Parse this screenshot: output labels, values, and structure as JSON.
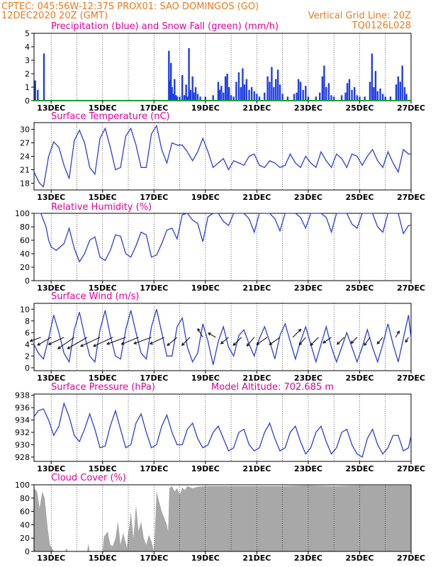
{
  "header": {
    "line1_left": "CPTEC:   045:56W-12:37S   PROX01: SAO DOMINGOS (GO)",
    "line2_left": "12DEC2020 20Z (GMT)",
    "line2_right": "Vertical Grid Line: 20Z",
    "line3_right": "TQ0126L028"
  },
  "colors": {
    "header": "#e87a1f",
    "panel_title": "#e0009a",
    "precip": "#1f3de6",
    "snow": "#1fa12f",
    "line": "#2a3fd6",
    "cloud": "#a8a8a8",
    "grid": "#000000"
  },
  "time_axis": {
    "start": "12DEC2020 12Z",
    "end": "27DEC2020 00Z",
    "label_days": [
      "13DEC",
      "15DEC",
      "17DEC",
      "19DEC",
      "21DEC",
      "23DEC",
      "25DEC",
      "27DEC"
    ]
  },
  "chart_data": [
    {
      "type": "bar",
      "title": "Precipitation (blue) and Snow Fall (green) (mm/h)",
      "ylim": [
        0,
        5
      ],
      "yticks": [
        0,
        1,
        2,
        3,
        4,
        5
      ],
      "series": [
        {
          "name": "Precipitation",
          "x_days": [
            12.38,
            12.48,
            12.72,
            14.0,
            16.0,
            17.58,
            17.62,
            17.66,
            17.7,
            17.74,
            17.8,
            17.86,
            17.9,
            18.0,
            18.1,
            18.18,
            18.25,
            18.3,
            18.36,
            18.42,
            18.5,
            18.55,
            18.62,
            18.7,
            18.8,
            19.0,
            19.3,
            19.5,
            19.55,
            19.62,
            19.7,
            19.78,
            19.85,
            19.92,
            20.0,
            20.1,
            20.2,
            20.3,
            20.38,
            20.45,
            20.52,
            20.6,
            20.7,
            20.8,
            20.9,
            21.0,
            21.1,
            21.3,
            21.42,
            21.5,
            21.58,
            21.66,
            21.74,
            21.82,
            21.9,
            22.0,
            22.2,
            22.45,
            22.55,
            22.62,
            22.7,
            22.8,
            22.9,
            23.0,
            23.3,
            23.45,
            23.55,
            23.62,
            23.7,
            23.8,
            23.9,
            24.0,
            24.3,
            24.45,
            24.52,
            24.6,
            24.7,
            24.8,
            24.9,
            25.0,
            25.2,
            25.4,
            25.48,
            25.55,
            25.62,
            25.7,
            25.8,
            25.9,
            26.0,
            26.2,
            26.42,
            26.5,
            26.58,
            26.66,
            26.75,
            26.82
          ],
          "values": [
            1.5,
            0.8,
            3.5,
            0.05,
            0.05,
            3.7,
            1.5,
            2.8,
            1.0,
            0.5,
            1.6,
            0.4,
            0.3,
            0.3,
            1.9,
            0.4,
            1.2,
            0.3,
            3.9,
            0.8,
            1.8,
            0.6,
            1.0,
            0.5,
            0.3,
            0.3,
            0.4,
            1.4,
            0.8,
            1.1,
            0.6,
            1.8,
            2.0,
            1.0,
            0.4,
            0.3,
            1.4,
            2.1,
            1.0,
            2.4,
            1.2,
            1.6,
            0.8,
            1.0,
            0.7,
            0.5,
            0.3,
            0.6,
            1.8,
            1.4,
            2.5,
            1.0,
            1.6,
            2.3,
            1.2,
            0.5,
            0.3,
            0.5,
            0.6,
            1.6,
            1.4,
            0.8,
            1.1,
            0.3,
            0.3,
            0.6,
            1.8,
            2.6,
            1.0,
            1.3,
            0.4,
            0.3,
            0.4,
            0.6,
            1.3,
            1.6,
            0.8,
            1.0,
            0.4,
            0.3,
            0.3,
            1.4,
            3.5,
            1.0,
            2.2,
            0.7,
            0.9,
            0.5,
            0.3,
            0.3,
            1.2,
            1.8,
            1.4,
            2.6,
            1.0,
            0.5
          ]
        },
        {
          "name": "Snow Fall",
          "x_days": [
            12.33,
            27.0
          ],
          "values": [
            0,
            0
          ]
        }
      ]
    },
    {
      "type": "line",
      "title": "Surface Temperature (nC)",
      "ylim": [
        16.5,
        31.5
      ],
      "yticks": [
        18,
        21,
        24,
        27,
        30
      ],
      "x_days": [
        12.33,
        12.55,
        12.7,
        12.9,
        13.1,
        13.3,
        13.5,
        13.7,
        13.9,
        14.1,
        14.3,
        14.5,
        14.7,
        14.9,
        15.1,
        15.3,
        15.5,
        15.7,
        15.9,
        16.1,
        16.3,
        16.5,
        16.7,
        16.9,
        17.1,
        17.3,
        17.5,
        17.7,
        17.9,
        18.1,
        18.3,
        18.5,
        18.7,
        18.9,
        19.1,
        19.3,
        19.5,
        19.7,
        19.9,
        20.1,
        20.3,
        20.5,
        20.7,
        20.9,
        21.1,
        21.3,
        21.5,
        21.7,
        21.9,
        22.1,
        22.3,
        22.5,
        22.7,
        22.9,
        23.1,
        23.3,
        23.5,
        23.7,
        23.9,
        24.1,
        24.3,
        24.5,
        24.7,
        24.9,
        25.1,
        25.3,
        25.5,
        25.7,
        25.9,
        26.1,
        26.3,
        26.5,
        26.7,
        26.9,
        27.0
      ],
      "values": [
        20.5,
        18.0,
        17.2,
        24.0,
        27.2,
        26.0,
        22.0,
        19.0,
        27.5,
        29.8,
        27.0,
        21.5,
        20.0,
        28.0,
        30.2,
        26.0,
        21.0,
        21.5,
        28.5,
        30.2,
        26.5,
        21.5,
        21.5,
        29.0,
        30.8,
        25.5,
        22.5,
        27.0,
        26.5,
        26.5,
        25.0,
        23.0,
        25.0,
        28.0,
        25.0,
        21.5,
        22.5,
        23.5,
        21.0,
        23.0,
        22.5,
        22.0,
        24.0,
        24.5,
        22.0,
        21.5,
        23.0,
        22.5,
        21.5,
        22.0,
        24.5,
        22.5,
        21.5,
        24.0,
        22.5,
        21.5,
        25.0,
        23.0,
        21.5,
        24.5,
        23.5,
        21.5,
        24.5,
        24.0,
        22.0,
        24.0,
        25.5,
        23.0,
        21.5,
        25.0,
        22.5,
        20.5,
        25.5,
        24.5,
        24.5
      ]
    },
    {
      "type": "line",
      "title": "Relative Humidity (%)",
      "ylim": [
        0,
        100
      ],
      "yticks": [
        0,
        20,
        40,
        60,
        80,
        100
      ],
      "x_days": [
        12.33,
        12.6,
        12.8,
        12.9,
        13.0,
        13.2,
        13.5,
        13.7,
        13.9,
        14.1,
        14.3,
        14.5,
        14.7,
        14.9,
        15.1,
        15.3,
        15.5,
        15.7,
        15.9,
        16.1,
        16.3,
        16.5,
        16.7,
        16.9,
        17.1,
        17.3,
        17.5,
        17.7,
        17.9,
        18.1,
        18.3,
        18.5,
        18.7,
        18.9,
        19.1,
        19.3,
        19.5,
        19.7,
        19.9,
        20.1,
        20.3,
        20.5,
        20.7,
        20.9,
        21.1,
        21.3,
        21.5,
        21.7,
        21.9,
        22.1,
        22.3,
        22.5,
        22.7,
        22.9,
        23.1,
        23.3,
        23.5,
        23.7,
        23.9,
        24.1,
        24.3,
        24.5,
        24.7,
        24.9,
        25.1,
        25.3,
        25.5,
        25.7,
        25.9,
        26.1,
        26.3,
        26.5,
        26.7,
        26.9,
        27.0
      ],
      "values": [
        100,
        100,
        80,
        60,
        50,
        45,
        55,
        78,
        48,
        28,
        40,
        60,
        65,
        35,
        30,
        45,
        68,
        66,
        40,
        35,
        52,
        72,
        68,
        35,
        38,
        55,
        75,
        78,
        62,
        98,
        100,
        90,
        85,
        58,
        95,
        100,
        100,
        88,
        82,
        100,
        100,
        100,
        92,
        72,
        100,
        100,
        100,
        92,
        74,
        100,
        100,
        100,
        94,
        78,
        100,
        100,
        100,
        94,
        72,
        100,
        100,
        100,
        84,
        78,
        100,
        100,
        100,
        80,
        72,
        100,
        100,
        100,
        70,
        82,
        82
      ]
    },
    {
      "type": "line",
      "title": "Surface Wind (m/s)",
      "ylim": [
        -0.5,
        11
      ],
      "yticks": [
        0,
        2,
        4,
        6,
        8,
        10
      ],
      "x_days": [
        12.33,
        12.5,
        12.7,
        12.9,
        13.1,
        13.3,
        13.5,
        13.7,
        13.9,
        14.1,
        14.3,
        14.5,
        14.7,
        14.9,
        15.1,
        15.3,
        15.5,
        15.7,
        15.9,
        16.1,
        16.3,
        16.5,
        16.7,
        16.9,
        17.1,
        17.3,
        17.5,
        17.7,
        17.9,
        18.1,
        18.3,
        18.5,
        18.7,
        18.9,
        19.1,
        19.3,
        19.5,
        19.7,
        19.9,
        20.1,
        20.3,
        20.5,
        20.7,
        20.9,
        21.1,
        21.3,
        21.5,
        21.7,
        21.9,
        22.1,
        22.3,
        22.5,
        22.7,
        22.9,
        23.1,
        23.3,
        23.5,
        23.7,
        23.9,
        24.1,
        24.3,
        24.5,
        24.7,
        24.9,
        25.1,
        25.3,
        25.5,
        25.7,
        25.9,
        26.1,
        26.3,
        26.5,
        26.7,
        26.9,
        27.0
      ],
      "values": [
        4.0,
        2.5,
        1.5,
        5.0,
        9.0,
        6.0,
        2.5,
        1.0,
        6.5,
        9.5,
        5.5,
        2.0,
        1.0,
        6.5,
        9.8,
        5.5,
        2.0,
        1.5,
        6.5,
        9.8,
        6.0,
        2.5,
        1.5,
        7.0,
        10.0,
        6.0,
        2.0,
        2.0,
        7.0,
        8.5,
        3.5,
        1.0,
        2.5,
        7.5,
        4.5,
        0.5,
        4.5,
        7.0,
        3.5,
        2.0,
        5.5,
        6.5,
        4.0,
        2.0,
        5.0,
        7.0,
        4.5,
        1.5,
        5.5,
        7.5,
        4.5,
        1.5,
        4.5,
        7.0,
        4.0,
        1.0,
        4.0,
        7.0,
        3.5,
        1.0,
        3.5,
        6.0,
        3.5,
        1.0,
        3.5,
        6.5,
        3.5,
        1.0,
        4.0,
        7.5,
        4.0,
        1.0,
        5.0,
        9.0,
        5.0
      ],
      "vectors": {
        "x_days": [
          12.6,
          13.0,
          13.5,
          13.9,
          14.4,
          14.9,
          15.4,
          15.9,
          16.4,
          16.9,
          17.4,
          17.9,
          18.4,
          18.9,
          19.4,
          19.9,
          20.4,
          20.9,
          21.4,
          21.9,
          22.4,
          22.9,
          23.4,
          23.9,
          24.4,
          24.9,
          25.4,
          25.9,
          26.4,
          26.9
        ],
        "speed": [
          3.0,
          4.5,
          5.0,
          6.0,
          7.0,
          6.5,
          6.5,
          6.0,
          5.5,
          5.5,
          4.5,
          3.5,
          3.0,
          2.5,
          2.0,
          2.5,
          3.0,
          3.0,
          3.5,
          3.5,
          3.0,
          2.5,
          3.0,
          2.5,
          2.5,
          2.0,
          2.5,
          2.0,
          1.5,
          1.0
        ],
        "direction_to_deg": [
          250,
          240,
          245,
          235,
          240,
          245,
          245,
          250,
          248,
          250,
          245,
          230,
          225,
          330,
          300,
          230,
          225,
          220,
          235,
          235,
          45,
          220,
          225,
          235,
          225,
          225,
          215,
          220,
          30,
          210
        ]
      }
    },
    {
      "type": "line",
      "title": "Surface Pressure (hPa)",
      "annotation": "Model Altitude: 702.685 m",
      "ylim": [
        927.3,
        938.2
      ],
      "yticks": [
        928,
        930,
        932,
        934,
        936,
        938
      ],
      "x_days": [
        12.33,
        12.5,
        12.7,
        12.9,
        13.1,
        13.3,
        13.5,
        13.7,
        13.9,
        14.1,
        14.3,
        14.5,
        14.7,
        14.9,
        15.1,
        15.3,
        15.5,
        15.7,
        15.9,
        16.1,
        16.3,
        16.5,
        16.7,
        16.9,
        17.1,
        17.3,
        17.5,
        17.7,
        17.9,
        18.1,
        18.3,
        18.5,
        18.7,
        18.9,
        19.1,
        19.3,
        19.5,
        19.7,
        19.9,
        20.1,
        20.3,
        20.5,
        20.7,
        20.9,
        21.1,
        21.3,
        21.5,
        21.7,
        21.9,
        22.1,
        22.3,
        22.5,
        22.7,
        22.9,
        23.1,
        23.3,
        23.5,
        23.7,
        23.9,
        24.1,
        24.3,
        24.5,
        24.7,
        24.9,
        25.1,
        25.3,
        25.5,
        25.7,
        25.9,
        26.1,
        26.3,
        26.5,
        26.7,
        26.9,
        27.0
      ],
      "values": [
        934.5,
        935.5,
        935.8,
        934.0,
        931.5,
        933.0,
        936.7,
        934.5,
        931.5,
        930.5,
        932.5,
        935.0,
        932.5,
        929.5,
        929.8,
        933.0,
        935.5,
        932.5,
        929.5,
        930.0,
        933.5,
        935.0,
        932.0,
        929.5,
        930.0,
        933.0,
        934.8,
        932.0,
        930.0,
        930.0,
        932.5,
        933.5,
        931.0,
        929.5,
        930.0,
        932.0,
        933.0,
        931.0,
        929.0,
        929.5,
        932.0,
        932.5,
        930.0,
        929.0,
        929.5,
        932.0,
        933.5,
        931.0,
        929.0,
        929.5,
        932.0,
        933.0,
        930.5,
        928.5,
        929.5,
        932.0,
        933.0,
        930.5,
        928.5,
        929.5,
        932.0,
        932.5,
        930.0,
        928.5,
        928.0,
        931.0,
        932.5,
        930.0,
        928.5,
        929.5,
        931.5,
        931.5,
        929.0,
        929.5,
        931.5
      ]
    },
    {
      "type": "area",
      "title": "Cloud Cover (%)",
      "ylim": [
        0,
        100
      ],
      "yticks": [
        0,
        20,
        40,
        60,
        80,
        100
      ],
      "x_days": [
        12.33,
        12.45,
        12.55,
        12.65,
        12.75,
        12.85,
        12.95,
        13.1,
        13.3,
        13.55,
        13.6,
        13.65,
        14.0,
        14.4,
        14.45,
        14.5,
        15.0,
        15.05,
        15.2,
        15.3,
        15.4,
        15.5,
        15.6,
        15.7,
        15.8,
        15.95,
        16.0,
        16.05,
        16.1,
        16.2,
        16.3,
        16.4,
        16.5,
        16.6,
        16.7,
        16.8,
        16.9,
        17.0,
        17.1,
        17.2,
        17.3,
        17.4,
        17.5,
        17.55,
        17.6,
        17.7,
        17.8,
        17.9,
        18.0,
        18.1,
        18.2,
        18.3,
        18.5,
        18.7,
        19.0,
        19.5,
        20.0,
        21.0,
        22.0,
        23.0,
        24.0,
        25.0,
        26.0,
        27.0
      ],
      "values": [
        95,
        90,
        65,
        90,
        80,
        40,
        10,
        0,
        0,
        0,
        5,
        0,
        0,
        0,
        12,
        0,
        0,
        22,
        30,
        10,
        8,
        20,
        45,
        10,
        28,
        5,
        28,
        40,
        60,
        20,
        70,
        30,
        45,
        20,
        10,
        25,
        15,
        0,
        90,
        75,
        60,
        50,
        40,
        30,
        95,
        98,
        90,
        95,
        85,
        96,
        92,
        98,
        95,
        97,
        98,
        98,
        98,
        98,
        98,
        99,
        98,
        99,
        99,
        99
      ]
    }
  ]
}
